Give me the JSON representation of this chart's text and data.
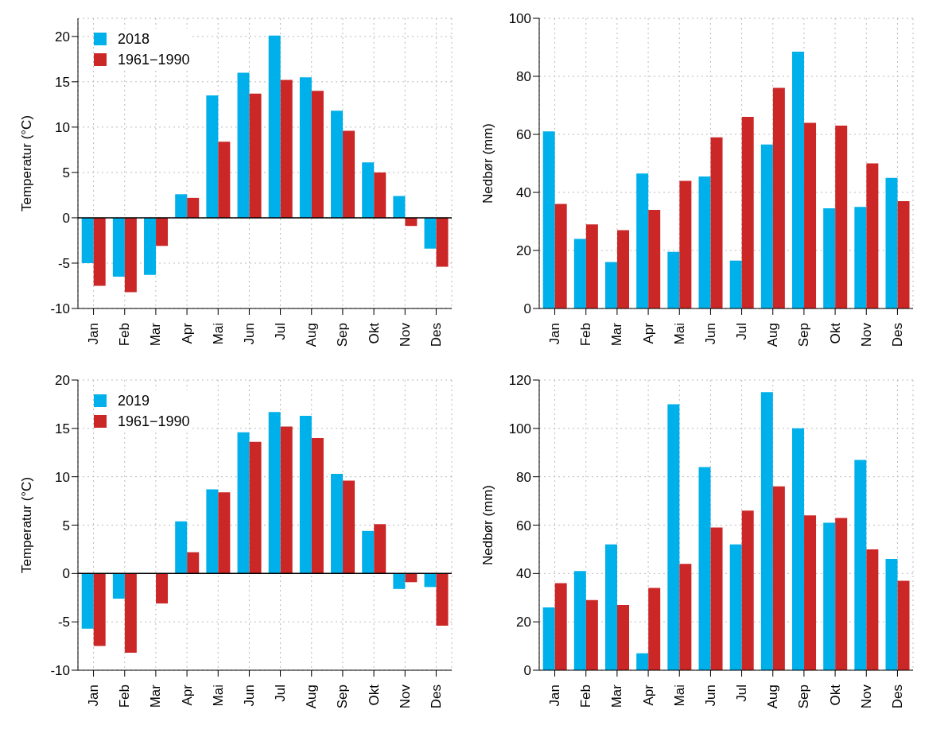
{
  "chart_data": [
    {
      "type": "bar",
      "ylabel": "Temperatur (°C)",
      "categories": [
        "Jan",
        "Feb",
        "Mar",
        "Apr",
        "Mai",
        "Jun",
        "Jul",
        "Aug",
        "Sep",
        "Okt",
        "Nov",
        "Des"
      ],
      "ylim": [
        -10,
        22
      ],
      "yticks": [
        -10,
        -5,
        0,
        5,
        10,
        15,
        20
      ],
      "grid": true,
      "legend": "top left",
      "ref_lines": [
        {
          "axis": "y",
          "value": 0,
          "color": "#000000"
        }
      ],
      "series": [
        {
          "name": "2018",
          "color": "#00b0ea",
          "values": [
            -5,
            -6.5,
            -6.3,
            2.6,
            13.5,
            16,
            20.1,
            15.5,
            11.8,
            6.1,
            2.4,
            -3.4
          ]
        },
        {
          "name": "1961−1990",
          "color": "#cc2727",
          "values": [
            -7.5,
            -8.2,
            -3.1,
            2.2,
            8.4,
            13.7,
            15.2,
            14,
            9.6,
            5,
            -0.9,
            -5.4
          ]
        }
      ]
    },
    {
      "type": "bar",
      "ylabel": "Nedbør (mm)",
      "categories": [
        "Jan",
        "Feb",
        "Mar",
        "Apr",
        "Mai",
        "Jun",
        "Jul",
        "Aug",
        "Sep",
        "Okt",
        "Nov",
        "Des"
      ],
      "ylim": [
        0,
        100
      ],
      "yticks": [
        0,
        20,
        40,
        60,
        80,
        100
      ],
      "grid": true,
      "series": [
        {
          "color": "#00b0ea",
          "values": [
            61,
            24,
            16,
            46.5,
            19.5,
            45.5,
            16.5,
            56.5,
            88.5,
            34.5,
            35,
            45
          ]
        },
        {
          "color": "#cc2727",
          "values": [
            36,
            29,
            27,
            34,
            44,
            59,
            66,
            76,
            64,
            63,
            50,
            37
          ]
        }
      ]
    },
    {
      "type": "bar",
      "ylabel": "Temperatur (°C)",
      "categories": [
        "Jan",
        "Feb",
        "Mar",
        "Apr",
        "Mai",
        "Jun",
        "Jul",
        "Aug",
        "Sep",
        "Okt",
        "Nov",
        "Des"
      ],
      "ylim": [
        -10,
        20
      ],
      "yticks": [
        -10,
        -5,
        0,
        5,
        10,
        15,
        20
      ],
      "grid": true,
      "legend": "top left",
      "ref_lines": [
        {
          "axis": "y",
          "value": 0,
          "color": "#000000"
        }
      ],
      "series": [
        {
          "name": "2019",
          "color": "#00b0ea",
          "values": [
            -5.7,
            -2.6,
            0,
            5.4,
            8.7,
            14.6,
            16.7,
            16.3,
            10.3,
            4.4,
            -1.6,
            -1.4
          ]
        },
        {
          "name": "1961−1990",
          "color": "#cc2727",
          "values": [
            -7.5,
            -8.2,
            -3.1,
            2.2,
            8.4,
            13.6,
            15.2,
            14,
            9.6,
            5.1,
            -0.9,
            -5.4
          ]
        }
      ]
    },
    {
      "type": "bar",
      "ylabel": "Nedbør (mm)",
      "categories": [
        "Jan",
        "Feb",
        "Mar",
        "Apr",
        "Mai",
        "Jun",
        "Jul",
        "Aug",
        "Sep",
        "Okt",
        "Nov",
        "Des"
      ],
      "ylim": [
        0,
        120
      ],
      "yticks": [
        0,
        20,
        40,
        60,
        80,
        100,
        120
      ],
      "grid": true,
      "series": [
        {
          "color": "#00b0ea",
          "values": [
            26,
            41,
            52,
            7,
            110,
            84,
            52,
            115,
            100,
            61,
            87,
            46
          ]
        },
        {
          "color": "#cc2727",
          "values": [
            36,
            29,
            27,
            34,
            44,
            59,
            66,
            76,
            64,
            63,
            50,
            37
          ]
        }
      ]
    }
  ]
}
